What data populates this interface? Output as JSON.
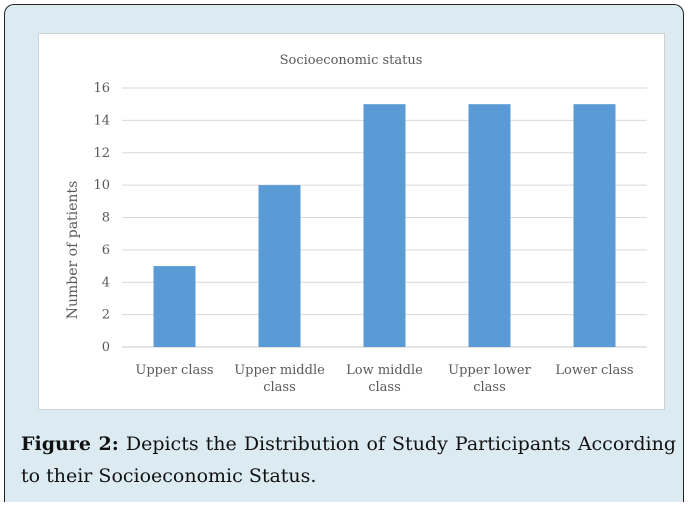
{
  "chart_data": {
    "type": "bar",
    "title": "Socioeconomic status",
    "xlabel": "",
    "ylabel": "Number of patients",
    "categories": [
      "Upper class",
      "Upper middle class",
      "Low middle class",
      "Upper lower class",
      "Lower class"
    ],
    "category_lines": [
      [
        "Upper class"
      ],
      [
        "Upper middle",
        "class"
      ],
      [
        "Low middle",
        "class"
      ],
      [
        "Upper lower",
        "class"
      ],
      [
        "Lower class"
      ]
    ],
    "values": [
      5,
      10,
      15,
      15,
      15
    ],
    "ylim": [
      0,
      16
    ],
    "yticks": [
      "0",
      "2",
      "4",
      "6",
      "8",
      "10",
      "12",
      "14",
      "16"
    ],
    "grid": true,
    "bar_color": "#5b9bd5"
  },
  "caption": {
    "label": "Figure 2:",
    "text": " Depicts the Distribution of Study Participants According to their Socioeconomic Status."
  }
}
